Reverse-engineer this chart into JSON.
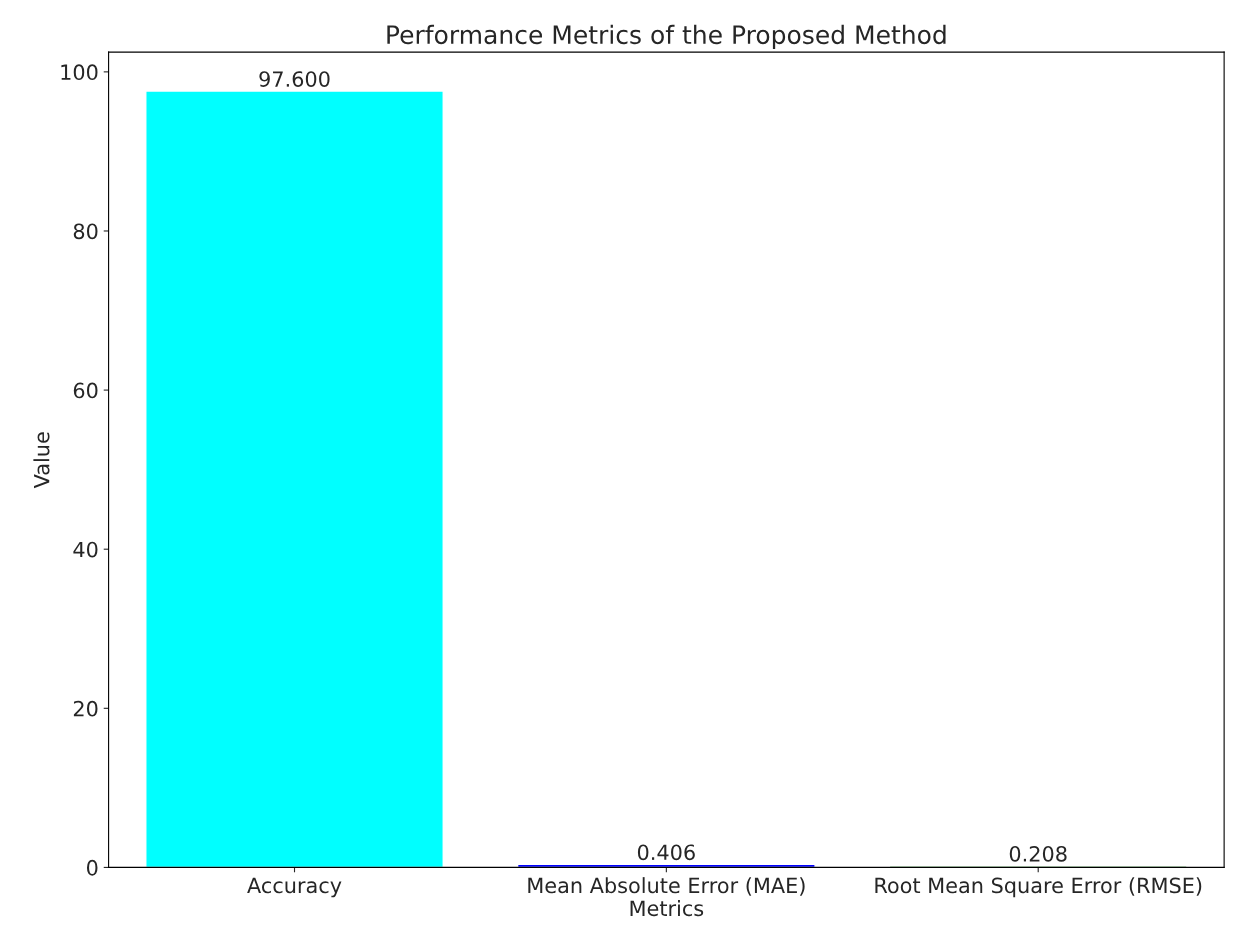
{
  "chart_data": {
    "type": "bar",
    "title": "Performance Metrics of the Proposed Method",
    "xlabel": "Metrics",
    "ylabel": "Value",
    "categories": [
      "Accuracy",
      "Mean Absolute Error (MAE)",
      "Root Mean Square Error (RMSE)"
    ],
    "values": [
      97.6,
      0.406,
      0.208
    ],
    "colors": [
      "#00ffff",
      "#0000ff",
      "#008000"
    ],
    "value_labels": [
      "97.600",
      "0.406",
      "0.208"
    ],
    "ylim": [
      0,
      102.48
    ],
    "yticks": [
      0,
      20,
      40,
      60,
      80,
      100
    ],
    "grid": false
  }
}
